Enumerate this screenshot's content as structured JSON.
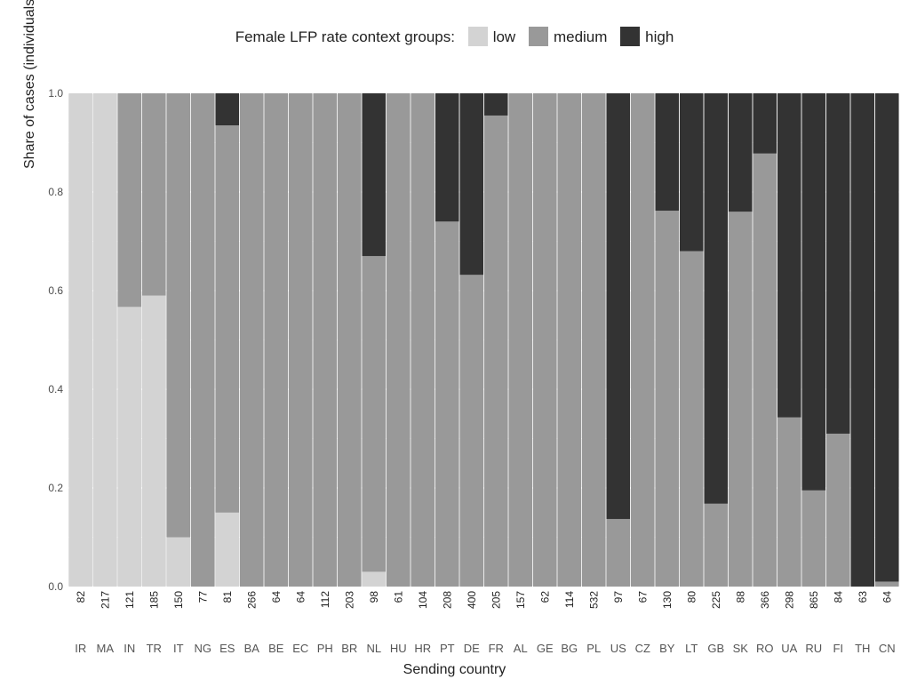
{
  "chart_data": {
    "type": "bar",
    "stacked": true,
    "title": "",
    "legend": {
      "title": "Female LFP rate context groups:",
      "position": "top",
      "entries": [
        "low",
        "medium",
        "high"
      ]
    },
    "colors": {
      "low": "#d3d3d3",
      "medium": "#999999",
      "high": "#333333"
    },
    "xlabel": "Sending country",
    "ylabel": "Share of cases (individuals in country-year",
    "ylim": [
      0,
      1
    ],
    "yticks": [
      "0.0",
      "0.2",
      "0.4",
      "0.6",
      "0.8",
      "1.0"
    ],
    "grid": true,
    "categories": [
      "IR",
      "MA",
      "IN",
      "TR",
      "IT",
      "NG",
      "ES",
      "BA",
      "BE",
      "EC",
      "PH",
      "BR",
      "NL",
      "HU",
      "HR",
      "PT",
      "DE",
      "FR",
      "AL",
      "GE",
      "BG",
      "PL",
      "US",
      "CZ",
      "BY",
      "LT",
      "GB",
      "SK",
      "RO",
      "UA",
      "RU",
      "FI",
      "TH",
      "CN"
    ],
    "counts": [
      "82",
      "217",
      "121",
      "185",
      "150",
      "77",
      "81",
      "266",
      "64",
      "64",
      "112",
      "203",
      "98",
      "61",
      "104",
      "208",
      "400",
      "205",
      "157",
      "62",
      "114",
      "532",
      "97",
      "67",
      "130",
      "80",
      "225",
      "88",
      "366",
      "298",
      "865",
      "84",
      "63",
      "64"
    ],
    "series": [
      {
        "name": "low",
        "values": [
          1.0,
          1.0,
          0.567,
          0.59,
          0.1,
          0.0,
          0.15,
          0,
          0,
          0,
          0,
          0,
          0.03,
          0,
          0,
          0,
          0,
          0,
          0,
          0,
          0,
          0,
          0,
          0,
          0,
          0,
          0,
          0,
          0,
          0,
          0,
          0,
          0,
          0
        ]
      },
      {
        "name": "medium",
        "values": [
          0,
          0,
          0.433,
          0.41,
          0.9,
          1.0,
          0.785,
          1,
          1,
          1,
          1,
          1,
          0.64,
          1,
          1,
          0.74,
          0.632,
          0.955,
          1,
          1,
          1,
          1,
          0.137,
          1,
          0.762,
          0.68,
          0.168,
          0.76,
          0.878,
          0.343,
          0.195,
          0.31,
          0,
          0.01
        ]
      },
      {
        "name": "high",
        "values": [
          0,
          0,
          0,
          0,
          0,
          0,
          0.065,
          0,
          0,
          0,
          0,
          0,
          0.33,
          0,
          0,
          0.26,
          0.368,
          0.045,
          0,
          0,
          0,
          0,
          0.863,
          0,
          0.238,
          0.32,
          0.832,
          0.24,
          0.122,
          0.657,
          0.805,
          0.69,
          1.0,
          0.99
        ]
      }
    ]
  }
}
